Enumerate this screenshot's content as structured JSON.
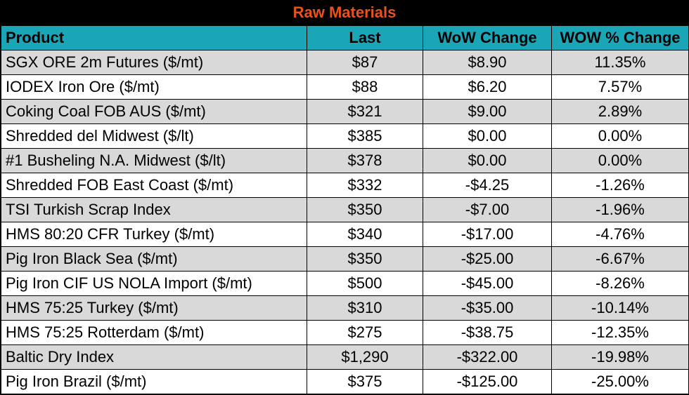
{
  "title": "Raw Materials",
  "headers": [
    "Product",
    "Last",
    "WoW Change",
    "WOW % Change"
  ],
  "rows": [
    [
      "SGX ORE 2m Futures ($/mt)",
      "$87",
      "$8.90",
      "11.35%"
    ],
    [
      "IODEX  Iron Ore ($/mt)",
      "$88",
      "$6.20",
      "7.57%"
    ],
    [
      "Coking Coal FOB AUS ($/mt)",
      "$321",
      "$9.00",
      "2.89%"
    ],
    [
      "Shredded del  Midwest ($/lt)",
      "$385",
      "$0.00",
      "0.00%"
    ],
    [
      "#1 Busheling N.A. Midwest ($/lt)",
      "$378",
      "$0.00",
      "0.00%"
    ],
    [
      "Shredded FOB East Coast ($/mt)",
      "$332",
      "-$4.25",
      "-1.26%"
    ],
    [
      "TSI Turkish Scrap Index",
      "$350",
      "-$7.00",
      "-1.96%"
    ],
    [
      "HMS 80:20 CFR Turkey ($/mt)",
      "$340",
      "-$17.00",
      "-4.76%"
    ],
    [
      "Pig Iron Black Sea ($/mt)",
      "$350",
      "-$25.00",
      "-6.67%"
    ],
    [
      "Pig Iron CIF US NOLA Import ($/mt)",
      "$500",
      "-$45.00",
      "-8.26%"
    ],
    [
      "HMS 75:25 Turkey ($/mt)",
      "$310",
      "-$35.00",
      "-10.14%"
    ],
    [
      "HMS 75:25 Rotterdam ($/mt)",
      "$275",
      "-$38.75",
      "-12.35%"
    ],
    [
      "Baltic Dry Index",
      "$1,290",
      "-$322.00",
      "-19.98%"
    ],
    [
      "Pig Iron Brazil ($/mt)",
      "$375",
      "-$125.00",
      "-25.00%"
    ]
  ],
  "colors": {
    "title_bg": "#000000",
    "title_text": "#e8521c",
    "header_bg": "#1aa6b7",
    "row_shade": "#d9d9d9",
    "row_plain": "#ffffff"
  }
}
